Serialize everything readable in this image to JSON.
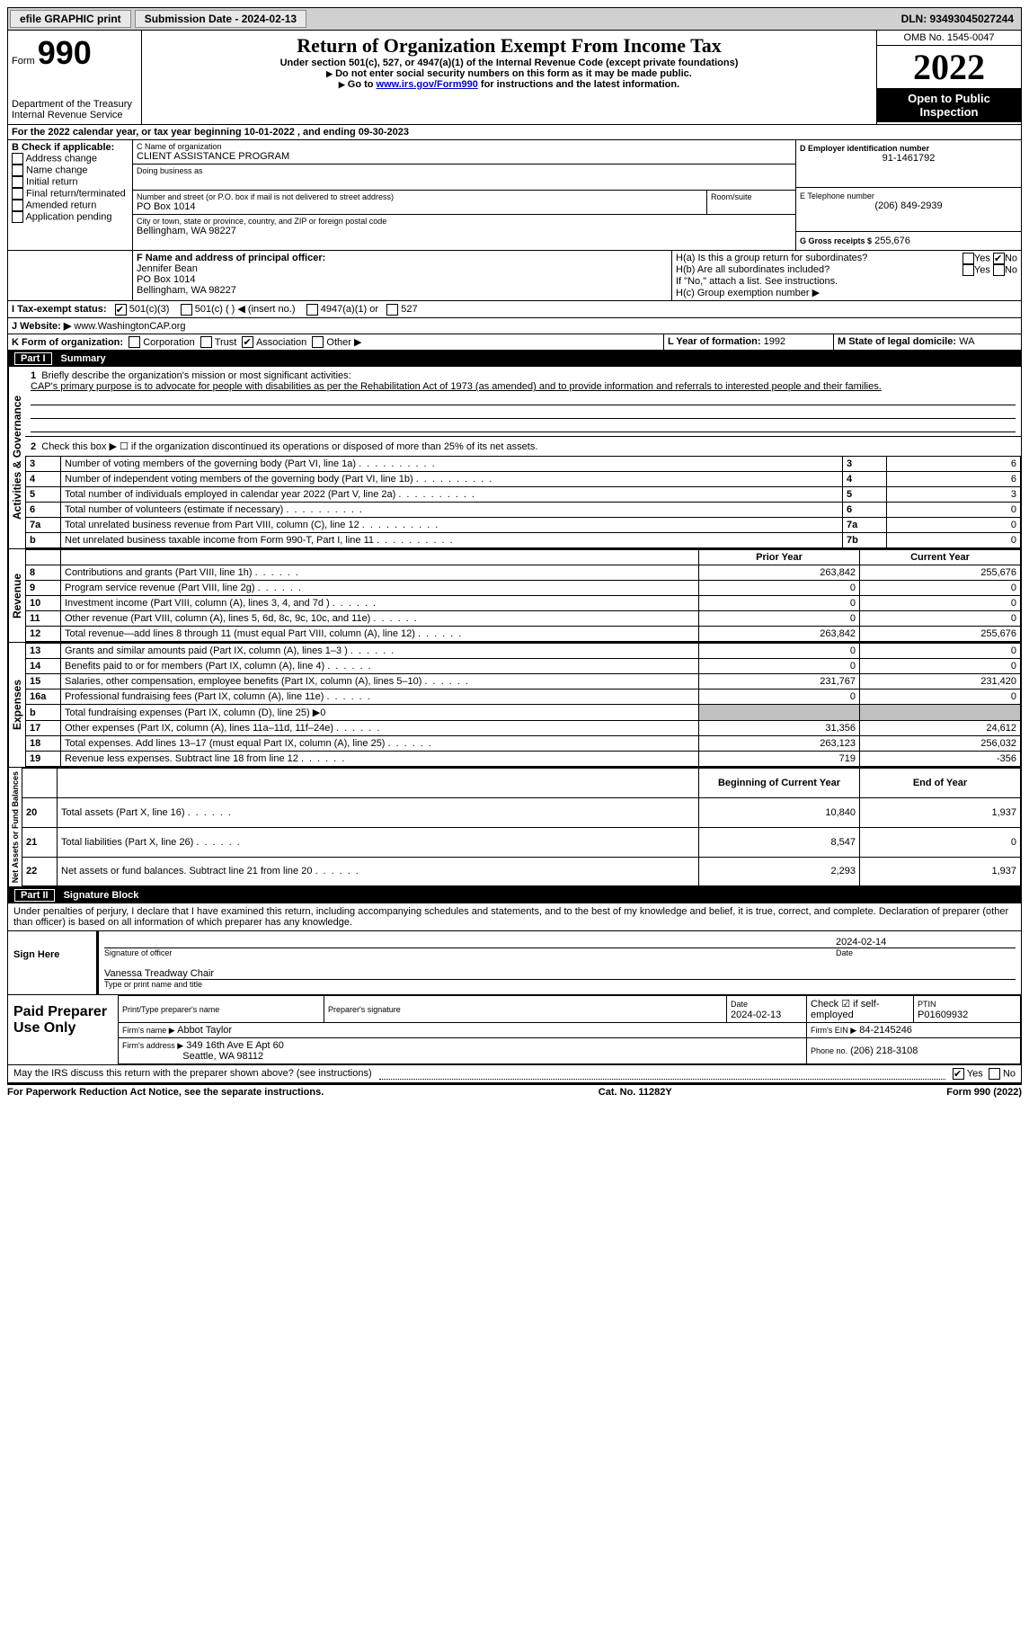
{
  "topbar": {
    "efile": "efile GRAPHIC print",
    "submission": "Submission Date - 2024-02-13",
    "dln": "DLN: 93493045027244"
  },
  "header": {
    "form_word": "Form",
    "form_num": "990",
    "title": "Return of Organization Exempt From Income Tax",
    "subtitle": "Under section 501(c), 527, or 4947(a)(1) of the Internal Revenue Code (except private foundations)",
    "note1": "Do not enter social security numbers on this form as it may be made public.",
    "note2_pre": "Go to ",
    "note2_link": "www.irs.gov/Form990",
    "note2_post": " for instructions and the latest information.",
    "dept": "Department of the Treasury",
    "irs": "Internal Revenue Service",
    "omb": "OMB No. 1545-0047",
    "year": "2022",
    "inspection": "Open to Public Inspection"
  },
  "lineA": "For the 2022 calendar year, or tax year beginning 10-01-2022    , and ending 09-30-2023",
  "boxB": {
    "label": "B Check if applicable:",
    "items": [
      "Address change",
      "Name change",
      "Initial return",
      "Final return/terminated",
      "Amended return",
      "Application pending"
    ]
  },
  "boxC": {
    "label": "C Name of organization",
    "name": "CLIENT ASSISTANCE PROGRAM",
    "dba": "Doing business as",
    "addr_label": "Number and street (or P.O. box if mail is not delivered to street address)",
    "room": "Room/suite",
    "addr": "PO Box 1014",
    "city_label": "City or town, state or province, country, and ZIP or foreign postal code",
    "city": "Bellingham, WA  98227"
  },
  "boxD": {
    "label": "D Employer identification number",
    "value": "91-1461792"
  },
  "boxE": {
    "label": "E Telephone number",
    "value": "(206) 849-2939"
  },
  "boxG": {
    "label": "G Gross receipts $",
    "value": "255,676"
  },
  "boxF": {
    "label": "F  Name and address of principal officer:",
    "name": "Jennifer Bean",
    "addr1": "PO Box 1014",
    "addr2": "Bellingham, WA  98227"
  },
  "boxH": {
    "a": "H(a)  Is this a group return for subordinates?",
    "b": "H(b)  Are all subordinates included?",
    "note": "If \"No,\" attach a list. See instructions.",
    "c": "H(c)  Group exemption number ▶",
    "yes": "Yes",
    "no": "No"
  },
  "boxI": {
    "label": "I     Tax-exempt status:",
    "opts": [
      "501(c)(3)",
      "501(c) (  ) ◀ (insert no.)",
      "4947(a)(1) or",
      "527"
    ]
  },
  "boxJ": {
    "label": "J    Website: ▶",
    "value": "www.WashingtonCAP.org"
  },
  "boxK": {
    "label": "K Form of organization:",
    "opts": [
      "Corporation",
      "Trust",
      "Association",
      "Other ▶"
    ]
  },
  "boxL": {
    "label": "L Year of formation:",
    "value": "1992"
  },
  "boxM": {
    "label": "M State of legal domicile:",
    "value": "WA"
  },
  "partI": {
    "hdr": "Part I",
    "title": "Summary",
    "mission_label": "Briefly describe the organization's mission or most significant activities:",
    "mission": "CAP's primary purpose is to advocate for people with disabilities as per the Rehabilitation Act of 1973 (as amended) and to provide information and referrals to interested people and their families.",
    "line2": "Check this box ▶ ☐  if the organization discontinued its operations or disposed of more than 25% of its net assets.",
    "rows_gov": [
      {
        "n": "3",
        "t": "Number of voting members of the governing body (Part VI, line 1a)",
        "box": "3",
        "v": "6"
      },
      {
        "n": "4",
        "t": "Number of independent voting members of the governing body (Part VI, line 1b)",
        "box": "4",
        "v": "6"
      },
      {
        "n": "5",
        "t": "Total number of individuals employed in calendar year 2022 (Part V, line 2a)",
        "box": "5",
        "v": "3"
      },
      {
        "n": "6",
        "t": "Total number of volunteers (estimate if necessary)",
        "box": "6",
        "v": "0"
      },
      {
        "n": "7a",
        "t": "Total unrelated business revenue from Part VIII, column (C), line 12",
        "box": "7a",
        "v": "0"
      },
      {
        "n": "b",
        "t": "Net unrelated business taxable income from Form 990-T, Part I, line 11",
        "box": "7b",
        "v": "0"
      }
    ],
    "col_prior": "Prior Year",
    "col_current": "Current Year",
    "rows_rev": [
      {
        "n": "8",
        "t": "Contributions and grants (Part VIII, line 1h)",
        "p": "263,842",
        "c": "255,676"
      },
      {
        "n": "9",
        "t": "Program service revenue (Part VIII, line 2g)",
        "p": "0",
        "c": "0"
      },
      {
        "n": "10",
        "t": "Investment income (Part VIII, column (A), lines 3, 4, and 7d )",
        "p": "0",
        "c": "0"
      },
      {
        "n": "11",
        "t": "Other revenue (Part VIII, column (A), lines 5, 6d, 8c, 9c, 10c, and 11e)",
        "p": "0",
        "c": "0"
      },
      {
        "n": "12",
        "t": "Total revenue—add lines 8 through 11 (must equal Part VIII, column (A), line 12)",
        "p": "263,842",
        "c": "255,676"
      }
    ],
    "rows_exp": [
      {
        "n": "13",
        "t": "Grants and similar amounts paid (Part IX, column (A), lines 1–3 )",
        "p": "0",
        "c": "0"
      },
      {
        "n": "14",
        "t": "Benefits paid to or for members (Part IX, column (A), line 4)",
        "p": "0",
        "c": "0"
      },
      {
        "n": "15",
        "t": "Salaries, other compensation, employee benefits (Part IX, column (A), lines 5–10)",
        "p": "231,767",
        "c": "231,420"
      },
      {
        "n": "16a",
        "t": "Professional fundraising fees (Part IX, column (A), line 11e)",
        "p": "0",
        "c": "0"
      },
      {
        "n": "b",
        "t": "Total fundraising expenses (Part IX, column (D), line 25) ▶0",
        "p": "",
        "c": "",
        "grey": true
      },
      {
        "n": "17",
        "t": "Other expenses (Part IX, column (A), lines 11a–11d, 11f–24e)",
        "p": "31,356",
        "c": "24,612"
      },
      {
        "n": "18",
        "t": "Total expenses. Add lines 13–17 (must equal Part IX, column (A), line 25)",
        "p": "263,123",
        "c": "256,032"
      },
      {
        "n": "19",
        "t": "Revenue less expenses. Subtract line 18 from line 12",
        "p": "719",
        "c": "-356"
      }
    ],
    "col_begin": "Beginning of Current Year",
    "col_end": "End of Year",
    "rows_net": [
      {
        "n": "20",
        "t": "Total assets (Part X, line 16)",
        "p": "10,840",
        "c": "1,937"
      },
      {
        "n": "21",
        "t": "Total liabilities (Part X, line 26)",
        "p": "8,547",
        "c": "0"
      },
      {
        "n": "22",
        "t": "Net assets or fund balances. Subtract line 21 from line 20",
        "p": "2,293",
        "c": "1,937"
      }
    ],
    "vlabels": {
      "gov": "Activities & Governance",
      "rev": "Revenue",
      "exp": "Expenses",
      "net": "Net Assets or Fund Balances"
    }
  },
  "partII": {
    "hdr": "Part II",
    "title": "Signature Block",
    "declaration": "Under penalties of perjury, I declare that I have examined this return, including accompanying schedules and statements, and to the best of my knowledge and belief, it is true, correct, and complete. Declaration of preparer (other than officer) is based on all information of which preparer has any knowledge.",
    "sign_here": "Sign Here",
    "sig_officer": "Signature of officer",
    "sig_date": "Date",
    "sig_date_v": "2024-02-14",
    "sig_name": "Vanessa Treadway  Chair",
    "sig_name_label": "Type or print name and title",
    "paid": "Paid Preparer Use Only",
    "prep_name_label": "Print/Type preparer's name",
    "prep_sig_label": "Preparer's signature",
    "prep_date_label": "Date",
    "prep_date": "2024-02-13",
    "check_label": "Check ☑ if self-employed",
    "ptin_label": "PTIN",
    "ptin": "P01609932",
    "firm_name_label": "Firm's name    ▶",
    "firm_name": "Abbot Taylor",
    "firm_ein_label": "Firm's EIN ▶",
    "firm_ein": "84-2145246",
    "firm_addr_label": "Firm's address ▶",
    "firm_addr1": "349 16th Ave E Apt 60",
    "firm_addr2": "Seattle, WA  98112",
    "firm_phone_label": "Phone no.",
    "firm_phone": "(206) 218-3108",
    "discuss": "May the IRS discuss this return with the preparer shown above? (see instructions)",
    "yes": "Yes",
    "no": "No"
  },
  "footer": {
    "left": "For Paperwork Reduction Act Notice, see the separate instructions.",
    "mid": "Cat. No. 11282Y",
    "right": "Form 990 (2022)"
  },
  "sections": {
    "num1": "1",
    "num2": "2"
  }
}
